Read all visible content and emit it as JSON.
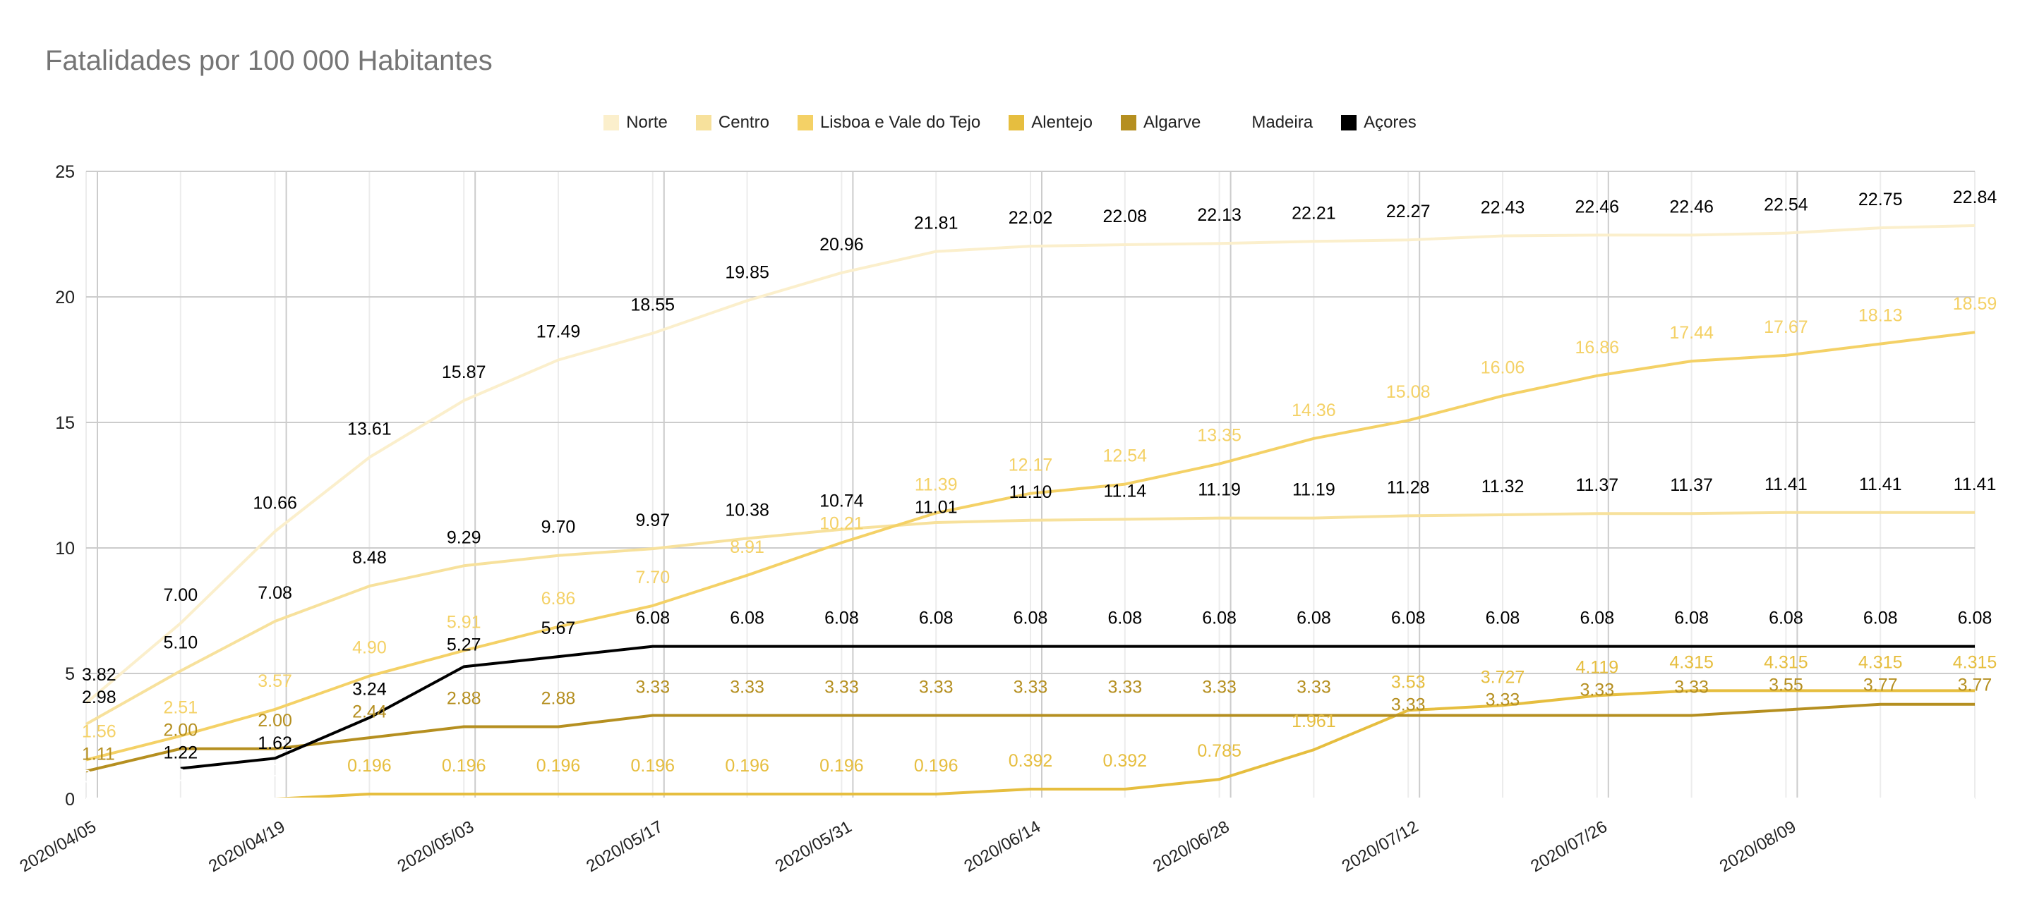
{
  "chart_data": {
    "type": "line",
    "title": "Fatalidades por 100 000 Habitantes",
    "xlabel": "",
    "ylabel": "",
    "ylim": [
      0,
      25
    ],
    "yticks": [
      0,
      5,
      10,
      15,
      20,
      25
    ],
    "ytick_labels": [
      "0",
      "5",
      "10",
      "15",
      "20",
      "25"
    ],
    "grid": true,
    "legend_position": "top",
    "x": [
      "2020/04/05",
      "2020/04/12",
      "2020/04/19",
      "2020/04/26",
      "2020/05/03",
      "2020/05/10",
      "2020/05/17",
      "2020/05/24",
      "2020/05/31",
      "2020/06/07",
      "2020/06/14",
      "2020/06/21",
      "2020/06/28",
      "2020/07/05",
      "2020/07/12",
      "2020/07/19",
      "2020/07/26",
      "2020/08/02",
      "2020/08/09",
      "2020/08/16",
      "2020/08/23"
    ],
    "xtick_labels": [
      "2020/04/05",
      "2020/04/19",
      "2020/05/03",
      "2020/05/17",
      "2020/05/31",
      "2020/06/14",
      "2020/06/28",
      "2020/07/12",
      "2020/07/26",
      "2020/08/09"
    ],
    "series": [
      {
        "name": "Norte",
        "color": "#fbefcc",
        "label_color": "#000000",
        "values": [
          3.82,
          7.0,
          10.66,
          13.61,
          15.87,
          17.49,
          18.55,
          19.85,
          20.96,
          21.81,
          22.02,
          22.08,
          22.13,
          22.21,
          22.27,
          22.43,
          22.46,
          22.46,
          22.54,
          22.75,
          22.84
        ],
        "labels": [
          "3.82",
          "7.00",
          "10.66",
          "13.61",
          "15.87",
          "17.49",
          "18.55",
          "19.85",
          "20.96",
          "21.81",
          "22.02",
          "22.08",
          "22.13",
          "22.21",
          "22.27",
          "22.43",
          "22.46",
          "22.46",
          "22.54",
          "22.75",
          "22.84"
        ]
      },
      {
        "name": "Centro",
        "color": "#f7e19c",
        "label_color": "#000000",
        "values": [
          2.98,
          5.1,
          7.08,
          8.48,
          9.29,
          9.7,
          9.97,
          10.38,
          10.74,
          11.01,
          11.1,
          11.14,
          11.19,
          11.19,
          11.28,
          11.32,
          11.37,
          11.37,
          11.41,
          11.41,
          11.41
        ],
        "labels": [
          "2.98",
          "5.10",
          "7.08",
          "8.48",
          "9.29",
          "9.70",
          "9.97",
          "10.38",
          "10.74",
          "11.01",
          "11.10",
          "11.14",
          "11.19",
          "11.19",
          "11.28",
          "11.32",
          "11.37",
          "11.37",
          "11.41",
          "11.41",
          "11.41"
        ]
      },
      {
        "name": "Lisboa e Vale do Tejo",
        "color": "#f4d166",
        "label_color": "#f4d166",
        "values": [
          1.56,
          2.51,
          3.57,
          4.9,
          5.91,
          6.86,
          7.7,
          8.91,
          10.21,
          11.39,
          12.17,
          12.54,
          13.35,
          14.36,
          15.08,
          16.06,
          16.86,
          17.44,
          17.67,
          18.13,
          18.59
        ],
        "labels": [
          "1.56",
          "2.51",
          "3.57",
          "4.90",
          "5.91",
          "6.86",
          "7.70",
          "8.91",
          "10.21",
          "11.39",
          "12.17",
          "12.54",
          "13.35",
          "14.36",
          "15.08",
          "16.06",
          "16.86",
          "17.44",
          "17.67",
          "18.13",
          "18.59"
        ]
      },
      {
        "name": "Alentejo",
        "color": "#e6be3f",
        "label_color": "#e6be3f",
        "values": [
          0,
          0,
          0,
          0.196,
          0.196,
          0.196,
          0.196,
          0.196,
          0.196,
          0.196,
          0.392,
          0.392,
          0.785,
          1.961,
          3.53,
          3.727,
          4.119,
          4.315,
          4.315,
          4.315,
          4.315
        ],
        "labels": [
          null,
          null,
          null,
          "0.196",
          "0.196",
          "0.196",
          "0.196",
          "0.196",
          "0.196",
          "0.196",
          "0.392",
          "0.392",
          "0.785",
          "1.961",
          "3.53",
          "3.727",
          "4.119",
          "4.315",
          "4.315",
          "4.315",
          "4.315"
        ]
      },
      {
        "name": "Algarve",
        "color": "#b58f20",
        "label_color": "#b58f20",
        "values": [
          1.11,
          2.0,
          2.0,
          2.44,
          2.88,
          2.88,
          3.33,
          3.33,
          3.33,
          3.33,
          3.33,
          3.33,
          3.33,
          3.33,
          3.33,
          3.33,
          3.33,
          3.33,
          3.55,
          3.77,
          3.77
        ],
        "labels": [
          "1.11",
          "2.00",
          "2.00",
          "2.44",
          "2.88",
          "2.88",
          "3.33",
          "3.33",
          "3.33",
          "3.33",
          "3.33",
          "3.33",
          "3.33",
          "3.33",
          "3.33",
          "3.33",
          "3.33",
          "3.33",
          "3.55",
          "3.77",
          "3.77"
        ]
      },
      {
        "name": "Madeira",
        "color": "#ffffff",
        "label_color": "#ffffff",
        "values": [
          0,
          0,
          0,
          0,
          0,
          0,
          0,
          0,
          0,
          0,
          0,
          0,
          0,
          0,
          0,
          0,
          0,
          0,
          0,
          0,
          0
        ],
        "labels": [
          "0",
          "0",
          "0",
          null,
          null,
          null,
          null,
          null,
          null,
          null,
          null,
          null,
          null,
          null,
          null,
          null,
          null,
          null,
          null,
          null,
          null
        ]
      },
      {
        "name": "Açores",
        "color": "#000000",
        "label_color": "#000000",
        "values": [
          null,
          1.22,
          1.62,
          3.24,
          5.27,
          5.67,
          6.08,
          6.08,
          6.08,
          6.08,
          6.08,
          6.08,
          6.08,
          6.08,
          6.08,
          6.08,
          6.08,
          6.08,
          6.08,
          6.08,
          6.08
        ],
        "labels": [
          null,
          "1.22",
          "1.62",
          "3.24",
          "5.27",
          "5.67",
          "6.08",
          "6.08",
          "6.08",
          "6.08",
          "6.08",
          "6.08",
          "6.08",
          "6.08",
          "6.08",
          "6.08",
          "6.08",
          "6.08",
          "6.08",
          "6.08",
          "6.08"
        ]
      }
    ]
  }
}
